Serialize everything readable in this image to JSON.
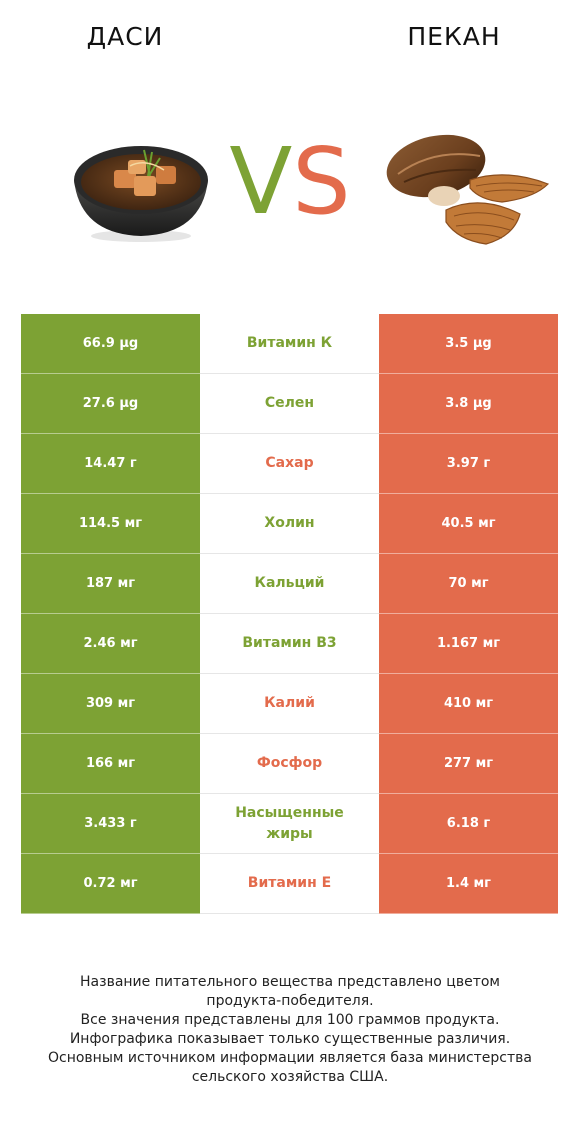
{
  "left_food": {
    "name": "ДАСИ",
    "icon": "dashi-bowl-image"
  },
  "right_food": {
    "name": "ПЕКАН",
    "icon": "pecan-nuts-image"
  },
  "vs": {
    "v": "V",
    "s": "S"
  },
  "colors": {
    "left": "#7da234",
    "right": "#e36b4c"
  },
  "rows": [
    {
      "left": "66.9 µg",
      "nutrient": "Витамин К",
      "right": "3.5 µg",
      "winner": "left"
    },
    {
      "left": "27.6 µg",
      "nutrient": "Селен",
      "right": "3.8 µg",
      "winner": "left"
    },
    {
      "left": "14.47 г",
      "nutrient": "Сахар",
      "right": "3.97 г",
      "winner": "right"
    },
    {
      "left": "114.5 мг",
      "nutrient": "Холин",
      "right": "40.5 мг",
      "winner": "left"
    },
    {
      "left": "187 мг",
      "nutrient": "Кальций",
      "right": "70 мг",
      "winner": "left"
    },
    {
      "left": "2.46 мг",
      "nutrient": "Витамин B3",
      "right": "1.167 мг",
      "winner": "left"
    },
    {
      "left": "309 мг",
      "nutrient": "Калий",
      "right": "410 мг",
      "winner": "right"
    },
    {
      "left": "166 мг",
      "nutrient": "Фосфор",
      "right": "277 мг",
      "winner": "right"
    },
    {
      "left": "3.433 г",
      "nutrient": "Насыщенные жиры",
      "right": "6.18 г",
      "winner": "left"
    },
    {
      "left": "0.72 мг",
      "nutrient": "Витамин E",
      "right": "1.4 мг",
      "winner": "right"
    }
  ],
  "footer": [
    "Название питательного вещества представлено цветом",
    "продукта-победителя.",
    "Все значения представлены для 100 граммов продукта.",
    "Инфографика показывает только существенные различия.",
    "Основным источником информации является база министерства",
    "сельского хозяйства США."
  ]
}
